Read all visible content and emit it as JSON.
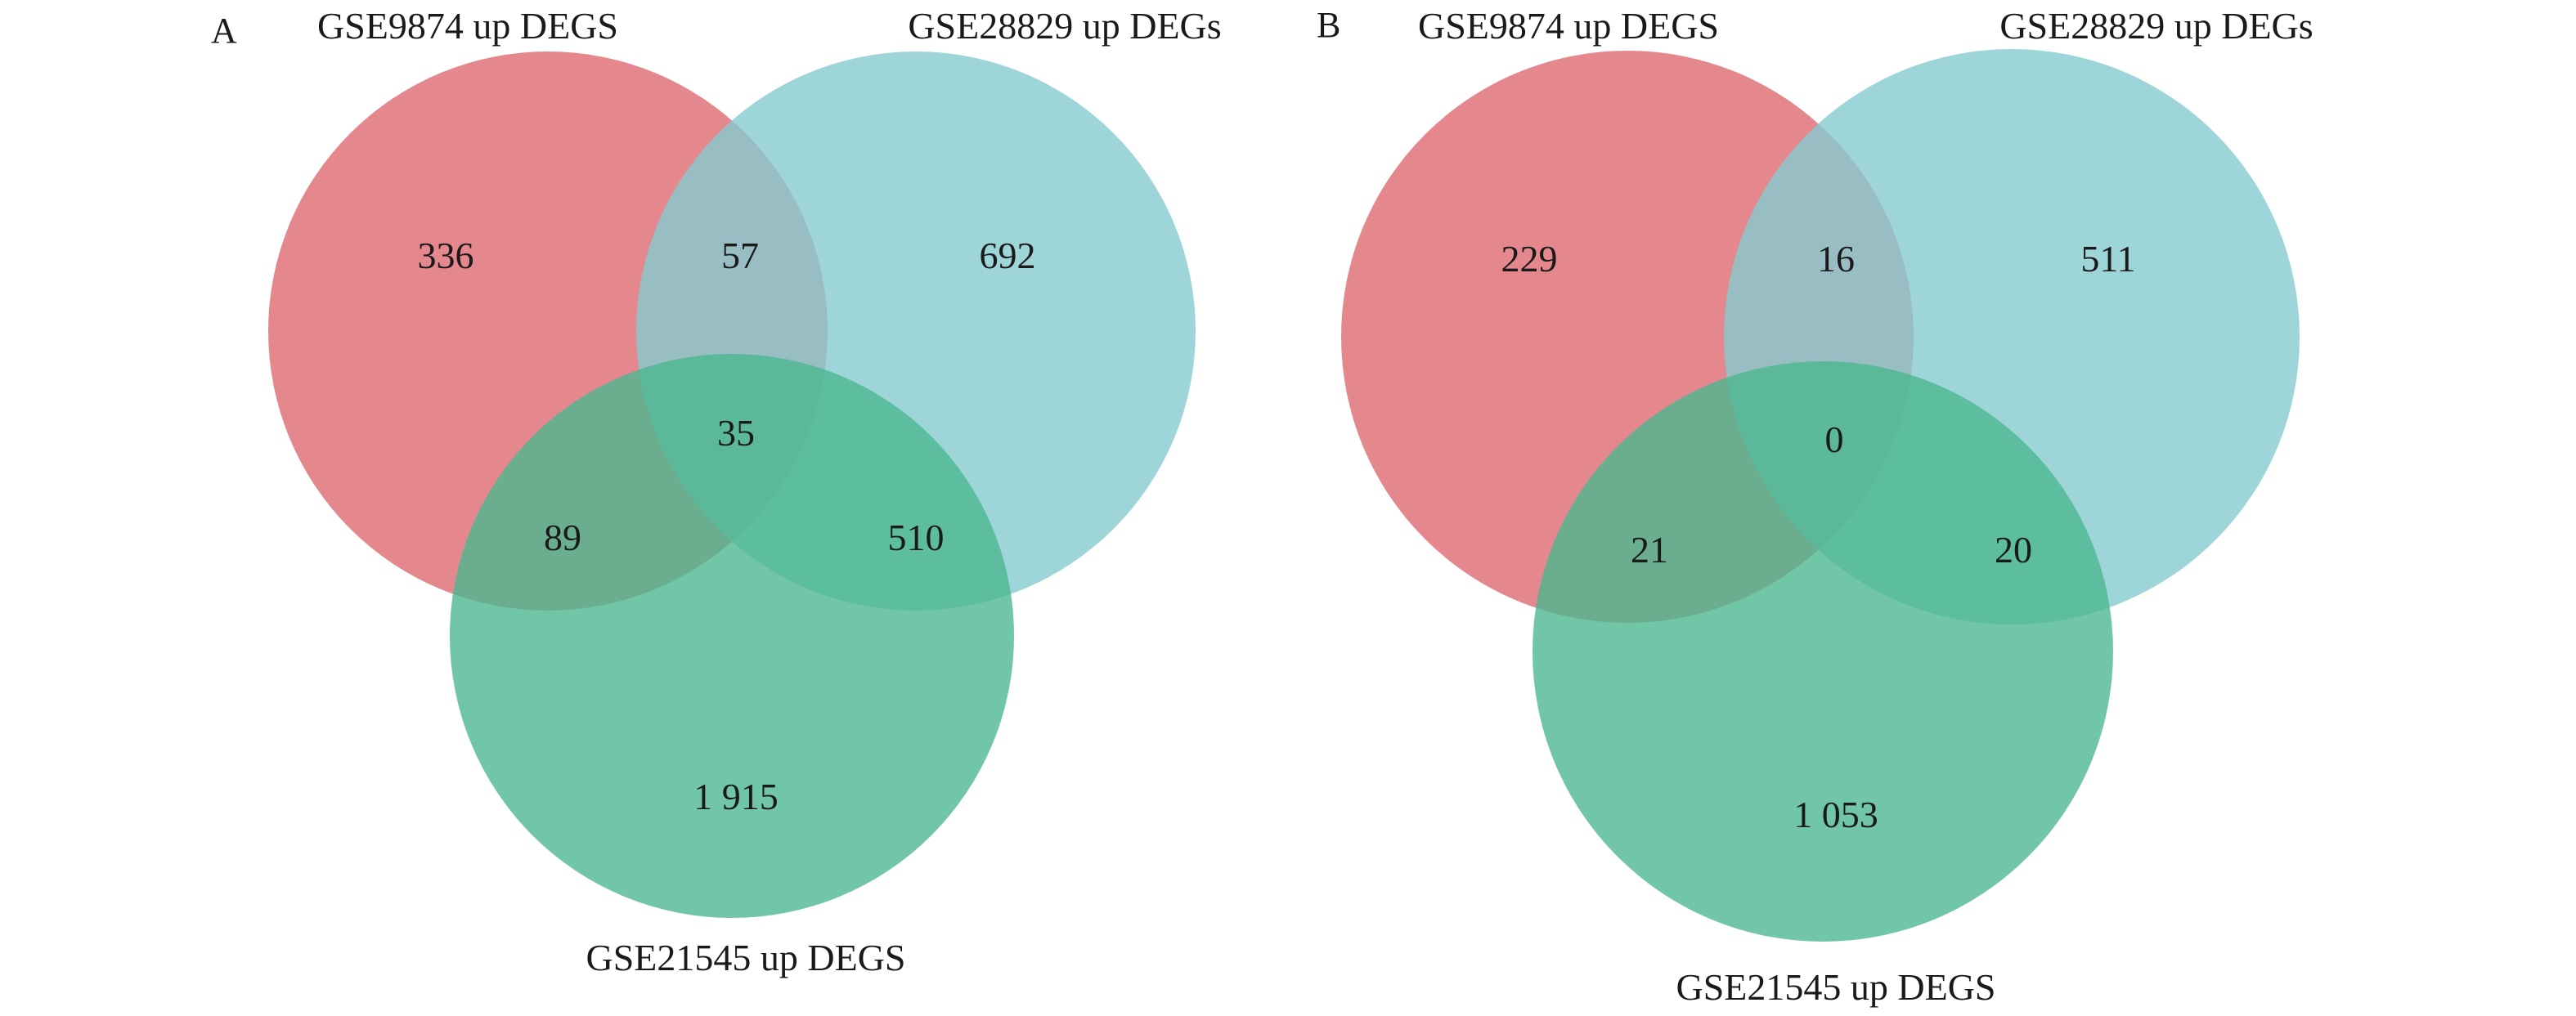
{
  "colors": {
    "set_a": "#dd6a70",
    "set_b": "#84cad0",
    "set_c": "#4cb890",
    "text": "#1a1a1a"
  },
  "panels": [
    {
      "letter": "A",
      "set_labels": [
        "GSE9874 up DEGS",
        "GSE28829 up DEGs",
        "GSE21545 up DEGS"
      ],
      "counts": {
        "a_only": "336",
        "ab": "57",
        "b_only": "692",
        "abc": "35",
        "ac": "89",
        "bc": "510",
        "c_only": "1 915"
      }
    },
    {
      "letter": "B",
      "set_labels": [
        "GSE9874 up DEGS",
        "GSE28829 up DEGs",
        "GSE21545 up DEGS"
      ],
      "counts": {
        "a_only": "229",
        "ab": "16",
        "b_only": "511",
        "abc": "0",
        "ac": "21",
        "bc": "20",
        "c_only": "1 053"
      }
    }
  ]
}
